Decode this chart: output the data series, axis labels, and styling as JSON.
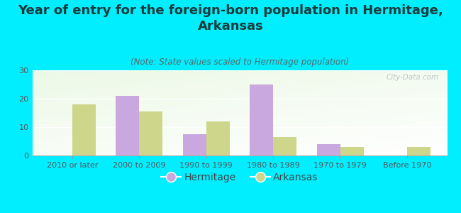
{
  "title": "Year of entry for the foreign-born population in Hermitage,\nArkansas",
  "subtitle": "(Note: State values scaled to Hermitage population)",
  "categories": [
    "2010 or later",
    "2000 to 2009",
    "1990 to 1999",
    "1980 to 1989",
    "1970 to 1979",
    "Before 1970"
  ],
  "hermitage_values": [
    0,
    21,
    7.5,
    25,
    4,
    0
  ],
  "arkansas_values": [
    18,
    15.5,
    12,
    6.5,
    3,
    3
  ],
  "hermitage_color": "#c9a8e0",
  "arkansas_color": "#cdd68a",
  "background_color": "#00eeff",
  "ylim": [
    0,
    30
  ],
  "yticks": [
    0,
    10,
    20,
    30
  ],
  "bar_width": 0.35,
  "watermark": "City-Data.com",
  "title_fontsize": 13,
  "subtitle_fontsize": 8.5,
  "legend_fontsize": 10,
  "tick_fontsize": 8,
  "title_color": "#1a3a3a",
  "subtitle_color": "#556666",
  "tick_color": "#555555",
  "watermark_color": "#b0c0c0"
}
